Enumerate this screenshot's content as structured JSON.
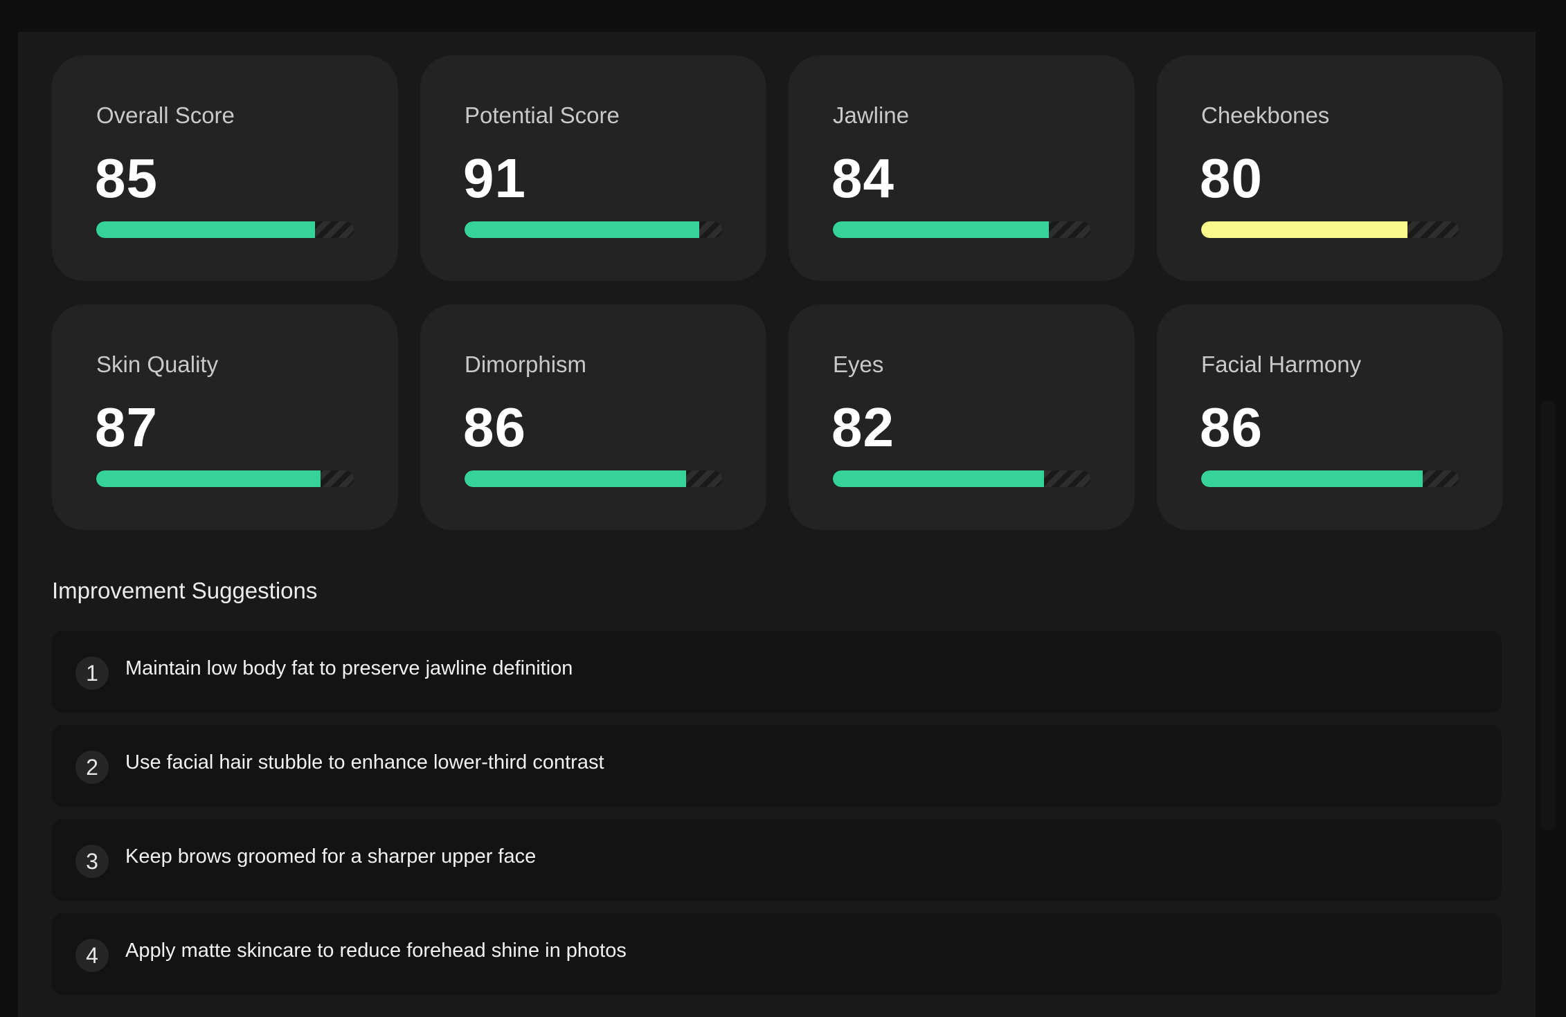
{
  "colors": {
    "good": "#35d399",
    "warning": "#fafa8c"
  },
  "metrics": [
    {
      "label": "Overall Score",
      "value": "85",
      "fraction": 0.85,
      "status": "good"
    },
    {
      "label": "Potential Score",
      "value": "91",
      "fraction": 0.91,
      "status": "good"
    },
    {
      "label": "Jawline",
      "value": "84",
      "fraction": 0.84,
      "status": "good"
    },
    {
      "label": "Cheekbones",
      "value": "80",
      "fraction": 0.8,
      "status": "warning"
    },
    {
      "label": "Skin Quality",
      "value": "87",
      "fraction": 0.87,
      "status": "good"
    },
    {
      "label": "Dimorphism",
      "value": "86",
      "fraction": 0.86,
      "status": "good"
    },
    {
      "label": "Eyes",
      "value": "82",
      "fraction": 0.82,
      "status": "good"
    },
    {
      "label": "Facial Harmony",
      "value": "86",
      "fraction": 0.86,
      "status": "good"
    }
  ],
  "suggestions": {
    "title": "Improvement Suggestions",
    "items": [
      {
        "number": "1",
        "text": "Maintain low body fat to preserve jawline definition"
      },
      {
        "number": "2",
        "text": "Use facial hair stubble to enhance lower-third contrast"
      },
      {
        "number": "3",
        "text": "Keep brows groomed for a sharper upper face"
      },
      {
        "number": "4",
        "text": "Apply matte skincare to reduce forehead shine in photos"
      }
    ]
  }
}
